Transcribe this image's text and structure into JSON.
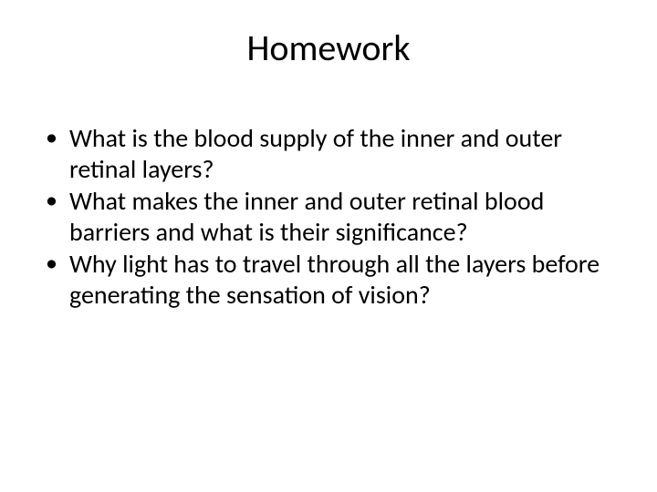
{
  "slide": {
    "title": "Homework",
    "bullets": [
      "What is the blood supply of the inner and outer retinal layers?",
      "What makes the inner and outer retinal blood barriers and what is their significance?",
      "Why light has to travel through all the layers before generating the sensation of vision?"
    ],
    "background_color": "#ffffff",
    "text_color": "#000000",
    "title_fontsize": 40,
    "body_fontsize": 28,
    "font_family": "Calibri"
  }
}
